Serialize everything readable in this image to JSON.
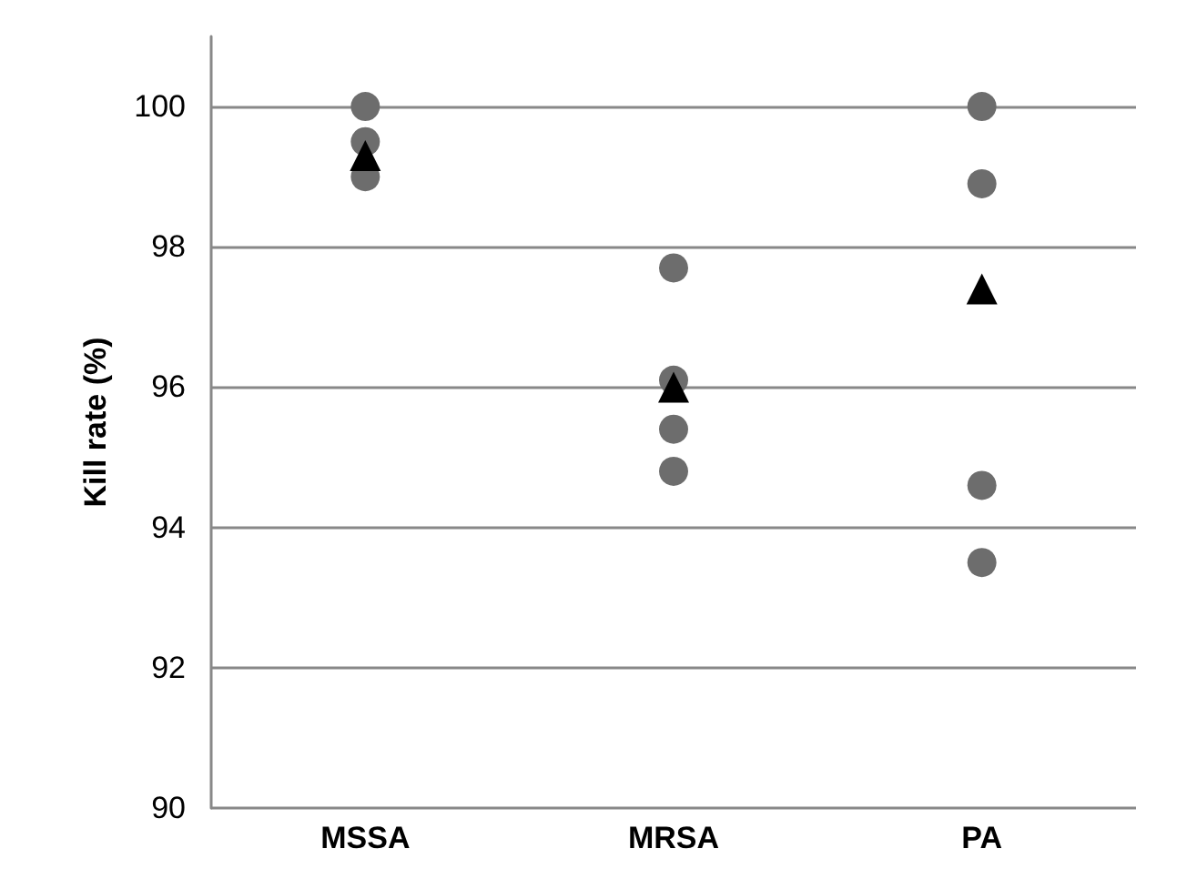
{
  "chart_data": {
    "type": "scatter",
    "ylabel": "Kill rate (%)",
    "categories": [
      "MSSA",
      "MRSA",
      "PA"
    ],
    "ylim": [
      90,
      101
    ],
    "yticks": [
      90,
      92,
      94,
      96,
      98,
      100
    ],
    "grid": "y",
    "series": [
      {
        "color": "#6d6d6d",
        "marker": "circle",
        "x": [
          "MSSA",
          "MSSA",
          "MSSA",
          "MRSA",
          "MRSA",
          "MRSA",
          "MRSA",
          "PA",
          "PA",
          "PA",
          "PA"
        ],
        "values": [
          100,
          99.5,
          99.0,
          97.7,
          96.1,
          95.4,
          94.8,
          100,
          98.9,
          94.6,
          93.5
        ]
      },
      {
        "color": "#000000",
        "marker": "triangle",
        "x": [
          "MSSA",
          "MRSA",
          "PA"
        ],
        "values": [
          99.3,
          96.0,
          97.4
        ]
      }
    ]
  }
}
